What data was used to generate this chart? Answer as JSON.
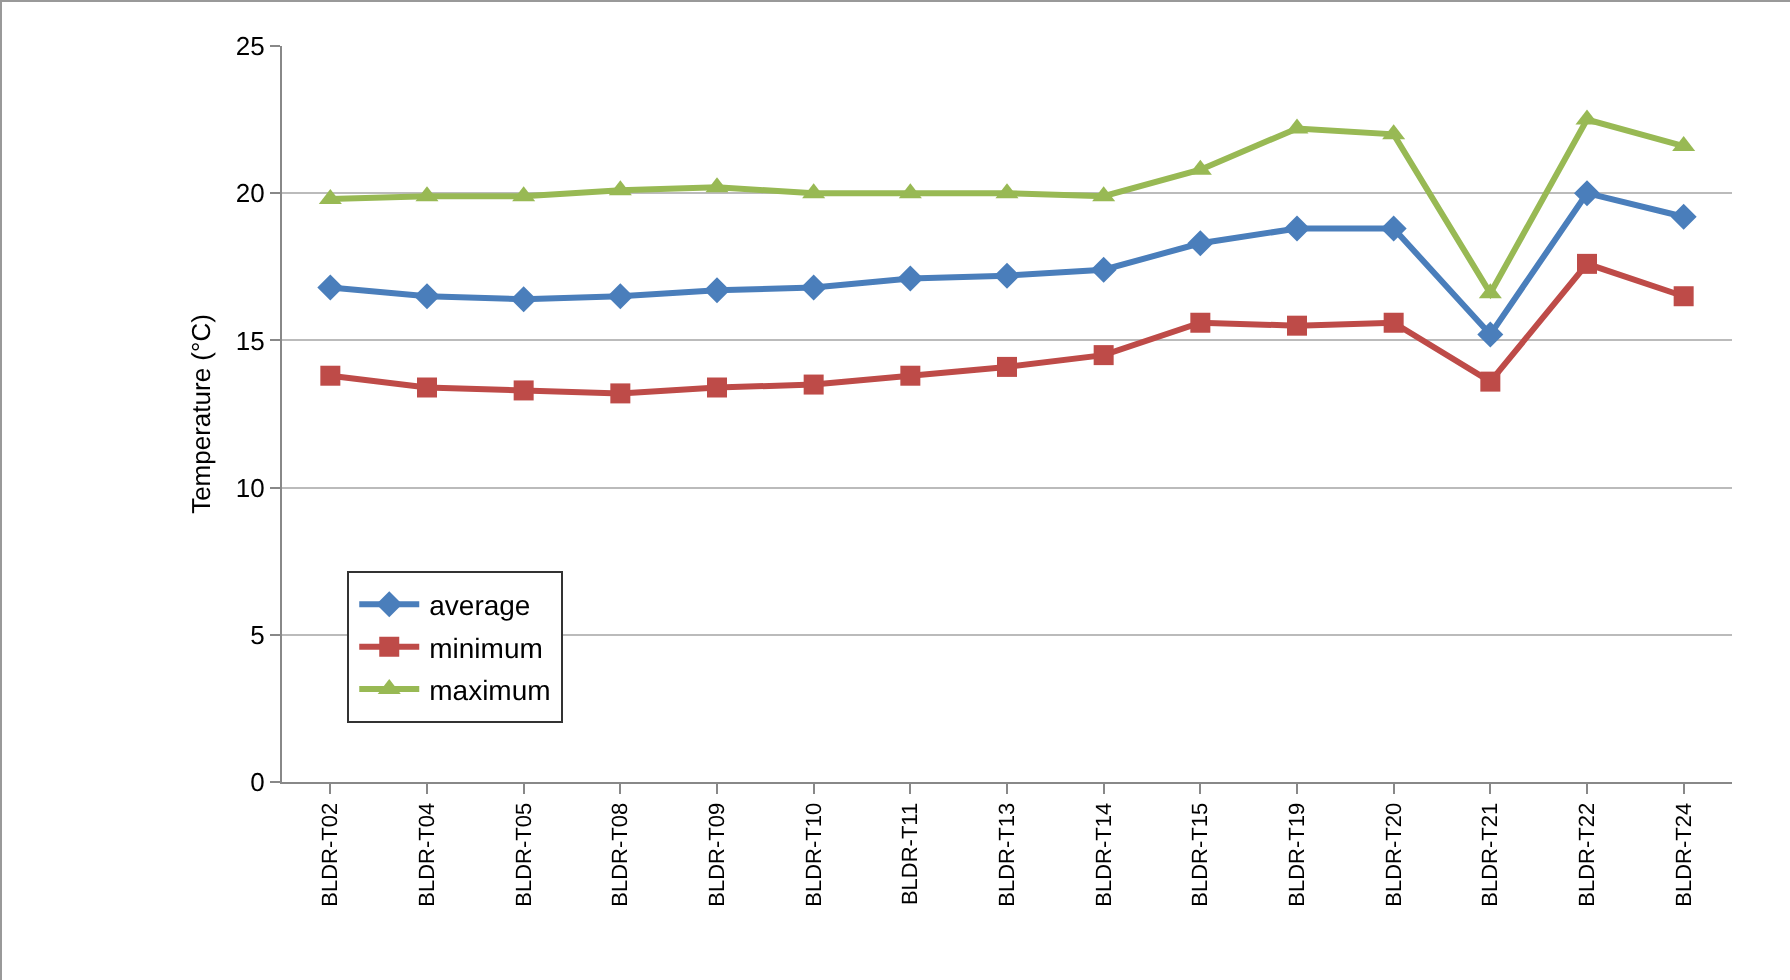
{
  "chart_data": {
    "type": "line",
    "ylabel": "Temperature (°C)",
    "categories": [
      "BLDR-T02",
      "BLDR-T04",
      "BLDR-T05",
      "BLDR-T08",
      "BLDR-T09",
      "BLDR-T10",
      "BLDR-T11",
      "BLDR-T13",
      "BLDR-T14",
      "BLDR-T15",
      "BLDR-T19",
      "BLDR-T20",
      "BLDR-T21",
      "BLDR-T22",
      "BLDR-T24"
    ],
    "series": [
      {
        "name": "average",
        "color": "#4a7ebb",
        "marker": "diamond",
        "values": [
          16.8,
          16.5,
          16.4,
          16.5,
          16.7,
          16.8,
          17.1,
          17.2,
          17.4,
          18.3,
          18.8,
          18.8,
          15.2,
          20.0,
          19.2
        ]
      },
      {
        "name": "minimum",
        "color": "#be4b48",
        "marker": "square",
        "values": [
          13.8,
          13.4,
          13.3,
          13.2,
          13.4,
          13.5,
          13.8,
          14.1,
          14.5,
          15.6,
          15.5,
          15.6,
          13.6,
          17.6,
          16.5
        ]
      },
      {
        "name": "maximum",
        "color": "#98b954",
        "marker": "triangle",
        "values": [
          19.8,
          19.9,
          19.9,
          20.1,
          20.2,
          20.0,
          20.0,
          20.0,
          19.9,
          20.8,
          22.2,
          22.0,
          16.6,
          22.5,
          21.6
        ]
      }
    ],
    "ylim": [
      0,
      25
    ],
    "yticks": [
      0,
      5,
      10,
      15,
      20,
      25
    ],
    "grid": "y",
    "legend": "bottom left",
    "line_style": "solid"
  }
}
